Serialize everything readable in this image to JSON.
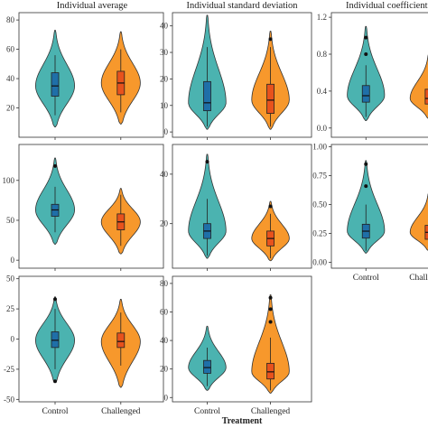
{
  "column_titles": [
    "Individual average",
    "Individual standard deviation",
    "Individual coefficient o"
  ],
  "x_axis_title": "Treatment",
  "colors": {
    "control": "#4bb3b0",
    "challenged": "#f7982c",
    "control_box": "#1f6fa8",
    "challenged_box": "#e8521c",
    "outline": "#333333",
    "panel_border": "#333333"
  },
  "chart_data": [
    {
      "type": "violin",
      "col": 0,
      "row": 0,
      "ylim": [
        0,
        85
      ],
      "yticks": [
        20,
        40,
        60,
        80
      ],
      "ytick_labels": [
        "20",
        "40",
        "60",
        "80"
      ],
      "categories": [
        "Control",
        "Challenged"
      ],
      "show_x_labels": false,
      "series": [
        {
          "category": "Control",
          "min": 7,
          "max": 73,
          "q1": 28,
          "median": 35,
          "q3": 44,
          "whisker_low": 15,
          "whisker_high": 56,
          "outliers": []
        },
        {
          "category": "Challenged",
          "min": 9,
          "max": 72,
          "q1": 29,
          "median": 37,
          "q3": 45,
          "whisker_low": 17,
          "whisker_high": 60,
          "outliers": []
        }
      ]
    },
    {
      "type": "violin",
      "col": 1,
      "row": 0,
      "ylim": [
        -2,
        45
      ],
      "yticks": [
        0,
        10,
        20,
        30,
        40
      ],
      "ytick_labels": [
        "0",
        "10",
        "20",
        "30",
        "40"
      ],
      "categories": [
        "Control",
        "Challenged"
      ],
      "show_x_labels": false,
      "series": [
        {
          "category": "Control",
          "min": 1,
          "max": 44,
          "q1": 8,
          "median": 11,
          "q3": 19,
          "whisker_low": 2,
          "whisker_high": 32,
          "outliers": []
        },
        {
          "category": "Challenged",
          "min": 1,
          "max": 38,
          "q1": 7,
          "median": 12,
          "q3": 18,
          "whisker_low": 2,
          "whisker_high": 32,
          "outliers": [
            35
          ]
        }
      ]
    },
    {
      "type": "violin",
      "col": 2,
      "row": 0,
      "ylim": [
        -0.1,
        1.25
      ],
      "yticks": [
        0.0,
        0.4,
        0.8,
        1.2
      ],
      "ytick_labels": [
        "0.0",
        "0.4",
        "0.8",
        "1.2"
      ],
      "categories": [
        "Control",
        "Challenged"
      ],
      "show_x_labels": false,
      "series": [
        {
          "category": "Control",
          "min": 0.08,
          "max": 1.1,
          "q1": 0.28,
          "median": 0.35,
          "q3": 0.46,
          "whisker_low": 0.12,
          "whisker_high": 0.68,
          "outliers": [
            0.8,
            0.98
          ]
        },
        {
          "category": "Challenged",
          "min": 0.1,
          "max": 0.8,
          "q1": 0.26,
          "median": 0.32,
          "q3": 0.42,
          "whisker_low": 0.12,
          "whisker_high": 0.62,
          "outliers": []
        }
      ]
    },
    {
      "type": "violin",
      "col": 0,
      "row": 1,
      "ylim": [
        -10,
        145
      ],
      "yticks": [
        0,
        50,
        100
      ],
      "ytick_labels": [
        "0",
        "50",
        "100"
      ],
      "categories": [
        "Control",
        "Challenged"
      ],
      "show_x_labels": false,
      "series": [
        {
          "category": "Control",
          "min": 20,
          "max": 128,
          "q1": 55,
          "median": 63,
          "q3": 70,
          "whisker_low": 35,
          "whisker_high": 92,
          "outliers": [
            118
          ]
        },
        {
          "category": "Challenged",
          "min": 8,
          "max": 90,
          "q1": 38,
          "median": 48,
          "q3": 58,
          "whisker_low": 18,
          "whisker_high": 82,
          "outliers": []
        }
      ]
    },
    {
      "type": "violin",
      "col": 1,
      "row": 1,
      "ylim": [
        2,
        52
      ],
      "yticks": [
        20,
        40
      ],
      "ytick_labels": [
        "20",
        "40"
      ],
      "categories": [
        "Control",
        "Challenged"
      ],
      "show_x_labels": false,
      "series": [
        {
          "category": "Control",
          "min": 6,
          "max": 48,
          "q1": 14,
          "median": 17,
          "q3": 20,
          "whisker_low": 7,
          "whisker_high": 30,
          "outliers": [
            45
          ]
        },
        {
          "category": "Challenged",
          "min": 5,
          "max": 29,
          "q1": 11,
          "median": 14,
          "q3": 17,
          "whisker_low": 6,
          "whisker_high": 24,
          "outliers": [
            27
          ]
        }
      ]
    },
    {
      "type": "violin",
      "col": 2,
      "row": 1,
      "ylim": [
        -0.05,
        1.02
      ],
      "yticks": [
        0.0,
        0.25,
        0.5,
        0.75,
        1.0
      ],
      "ytick_labels": [
        "0.00",
        "0.25",
        "0.50",
        "0.75",
        "1.00"
      ],
      "categories": [
        "Control",
        "Challenged"
      ],
      "show_x_labels": true,
      "series": [
        {
          "category": "Control",
          "min": 0.08,
          "max": 0.88,
          "q1": 0.21,
          "median": 0.27,
          "q3": 0.33,
          "whisker_low": 0.1,
          "whisker_high": 0.5,
          "outliers": [
            0.66,
            0.85
          ]
        },
        {
          "category": "Challenged",
          "min": 0.1,
          "max": 0.6,
          "q1": 0.2,
          "median": 0.26,
          "q3": 0.32,
          "whisker_low": 0.12,
          "whisker_high": 0.48,
          "outliers": []
        }
      ]
    },
    {
      "type": "violin",
      "col": 0,
      "row": 2,
      "ylim": [
        -52,
        52
      ],
      "yticks": [
        -50,
        -25,
        0,
        25,
        50
      ],
      "ytick_labels": [
        "-50",
        "-25",
        "0",
        "25",
        "50"
      ],
      "categories": [
        "Control",
        "Challenged"
      ],
      "show_x_labels": true,
      "series": [
        {
          "category": "Control",
          "min": -36,
          "max": 35,
          "q1": -7,
          "median": -1,
          "q3": 6,
          "whisker_low": -25,
          "whisker_high": 25,
          "outliers": [
            -35,
            33
          ]
        },
        {
          "category": "Challenged",
          "min": -40,
          "max": 33,
          "q1": -7,
          "median": -2,
          "q3": 5,
          "whisker_low": -22,
          "whisker_high": 22,
          "outliers": []
        }
      ]
    },
    {
      "type": "violin",
      "col": 1,
      "row": 2,
      "ylim": [
        -3,
        85
      ],
      "yticks": [
        0,
        20,
        40,
        60,
        80
      ],
      "ytick_labels": [
        "0",
        "20",
        "40",
        "60",
        "80"
      ],
      "categories": [
        "Control",
        "Challenged"
      ],
      "show_x_labels": true,
      "series": [
        {
          "category": "Control",
          "min": 5,
          "max": 50,
          "q1": 17,
          "median": 21,
          "q3": 26,
          "whisker_low": 8,
          "whisker_high": 35,
          "outliers": []
        },
        {
          "category": "Challenged",
          "min": 3,
          "max": 72,
          "q1": 13,
          "median": 18,
          "q3": 24,
          "whisker_low": 5,
          "whisker_high": 42,
          "outliers": [
            53,
            62,
            70
          ]
        }
      ]
    }
  ]
}
